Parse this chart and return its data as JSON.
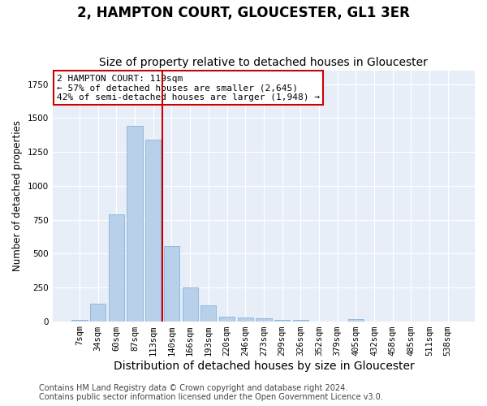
{
  "title": "2, HAMPTON COURT, GLOUCESTER, GL1 3ER",
  "subtitle": "Size of property relative to detached houses in Gloucester",
  "xlabel": "Distribution of detached houses by size in Gloucester",
  "ylabel": "Number of detached properties",
  "bar_color": "#b8d0ea",
  "bar_edge_color": "#7aadd4",
  "categories": [
    "7sqm",
    "34sqm",
    "60sqm",
    "87sqm",
    "113sqm",
    "140sqm",
    "166sqm",
    "193sqm",
    "220sqm",
    "246sqm",
    "273sqm",
    "299sqm",
    "326sqm",
    "352sqm",
    "379sqm",
    "405sqm",
    "432sqm",
    "458sqm",
    "485sqm",
    "511sqm",
    "538sqm"
  ],
  "values": [
    10,
    130,
    790,
    1440,
    1340,
    555,
    248,
    115,
    35,
    25,
    22,
    12,
    10,
    0,
    0,
    18,
    0,
    0,
    0,
    0,
    0
  ],
  "vline_color": "#cc0000",
  "vline_x": 4.5,
  "annotation_line1": "2 HAMPTON COURT: 119sqm",
  "annotation_line2": "← 57% of detached houses are smaller (2,645)",
  "annotation_line3": "42% of semi-detached houses are larger (1,948) →",
  "annotation_box_edge": "#cc0000",
  "ylim_max": 1850,
  "footer1": "Contains HM Land Registry data © Crown copyright and database right 2024.",
  "footer2": "Contains public sector information licensed under the Open Government Licence v3.0.",
  "background_color": "#e8eef8",
  "grid_color": "#ffffff",
  "title_fontsize": 12,
  "subtitle_fontsize": 10,
  "xlabel_fontsize": 10,
  "ylabel_fontsize": 8.5,
  "tick_fontsize": 7.5,
  "annotation_fontsize": 8,
  "footer_fontsize": 7
}
